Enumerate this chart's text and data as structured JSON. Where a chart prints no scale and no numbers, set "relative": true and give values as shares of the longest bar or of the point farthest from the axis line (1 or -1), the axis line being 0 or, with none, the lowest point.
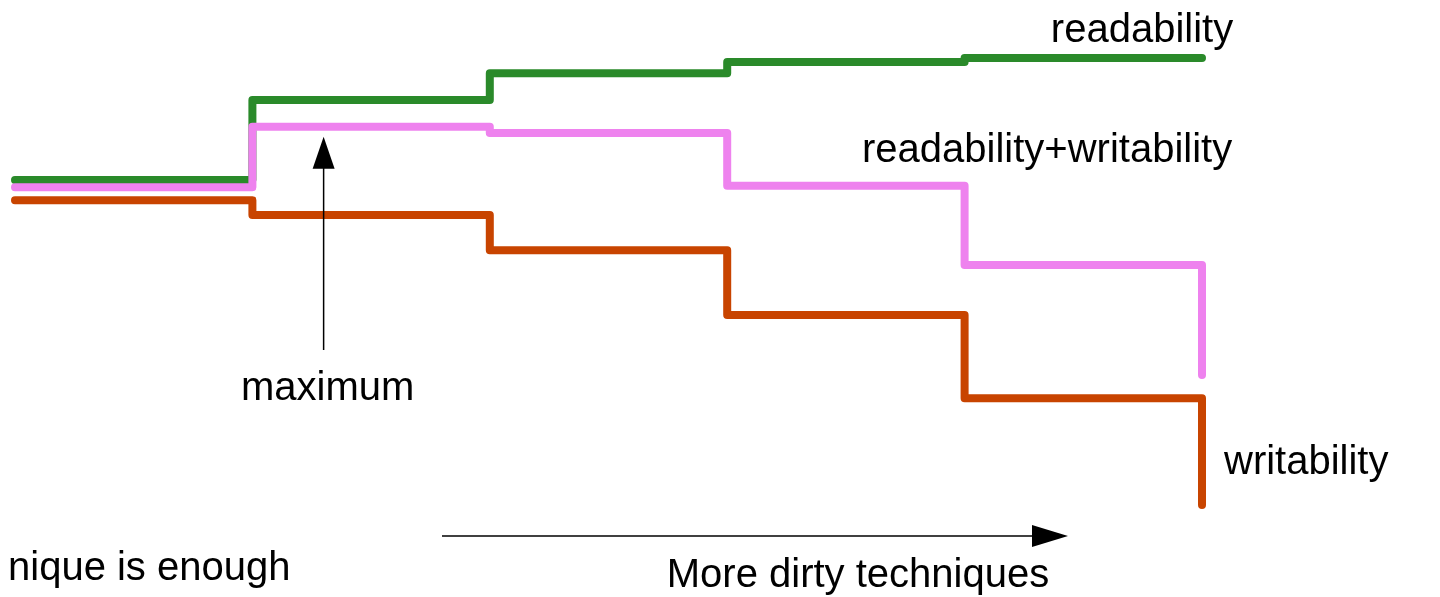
{
  "chart_data": {
    "type": "step",
    "relative": true,
    "categories": [
      null,
      null,
      null,
      null,
      null,
      null
    ],
    "series": [
      {
        "name": "readability",
        "color": "#2a8a2a",
        "values": [
          0.727,
          0.906,
          0.966,
          0.991,
          1.0,
          1.0
        ]
      },
      {
        "name": "readability+writability",
        "color": "#ee82ee",
        "values": [
          0.711,
          0.846,
          0.832,
          0.714,
          0.537,
          0.291
        ]
      },
      {
        "name": "writability",
        "color": "#c84400",
        "values": [
          0.682,
          0.649,
          0.57,
          0.425,
          0.239,
          0.0
        ]
      }
    ],
    "annotations": [
      "maximum",
      "More dirty techniques",
      "nique is enough"
    ],
    "marker": "none",
    "legend": false,
    "grid": false
  }
}
